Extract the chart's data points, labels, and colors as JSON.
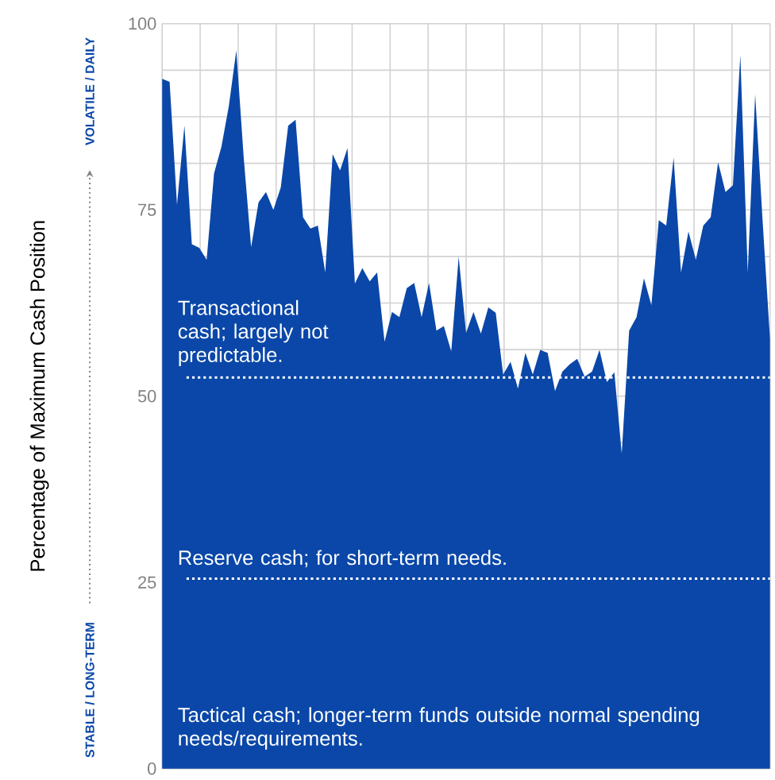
{
  "chart_data": {
    "type": "area",
    "ylabel": "Percentage of Maximum Cash Position",
    "categories": [
      null,
      null,
      null,
      null,
      null,
      null,
      null,
      null,
      null,
      null,
      null,
      null,
      null,
      null,
      null,
      null,
      null,
      null,
      null,
      null,
      null,
      null,
      null,
      null,
      null,
      null,
      null,
      null,
      null,
      null,
      null,
      null,
      null,
      null,
      null,
      null,
      null,
      null,
      null,
      null,
      null,
      null,
      null,
      null,
      null,
      null,
      null,
      null,
      null,
      null,
      null,
      null,
      null,
      null,
      null,
      null,
      null,
      null,
      null,
      null,
      null,
      null,
      null,
      null,
      null,
      null,
      null,
      null,
      null,
      null,
      null,
      null,
      null,
      null,
      null,
      null,
      null,
      null,
      null,
      null,
      null,
      null,
      null
    ],
    "values": [
      92.6,
      92.2,
      75.7,
      86.3,
      70.4,
      69.9,
      68.3,
      79.9,
      83.5,
      89,
      96.4,
      82,
      70,
      76,
      77.4,
      75,
      78,
      86.3,
      87.1,
      74,
      72.5,
      72.9,
      66.6,
      82.5,
      80.3,
      83.3,
      65.1,
      67.2,
      65.4,
      66.6,
      57.3,
      61.3,
      60.6,
      64.5,
      65.2,
      60.6,
      65.2,
      58.8,
      59.4,
      56,
      68.7,
      58.5,
      61.3,
      58.4,
      61.9,
      61.2,
      52.9,
      54.6,
      51,
      55.8,
      52.9,
      56.2,
      55.8,
      50.7,
      53.3,
      54.3,
      55,
      52.6,
      53.3,
      56.2,
      51.9,
      53.2,
      42.3,
      58.8,
      60.6,
      65.8,
      62.2,
      73.6,
      72.9,
      82,
      66.6,
      72.1,
      68.3,
      72.9,
      74,
      81.4,
      77.4,
      78.3,
      95.8,
      66.6,
      90.5,
      73.6,
      57.7
    ],
    "color": "#0a47a8",
    "ylim": [
      0,
      100
    ],
    "yticks": [
      0,
      25,
      50,
      75,
      100
    ],
    "grid": true,
    "ref_lines": [
      {
        "axis": "y",
        "value": 52.5,
        "label": "Transactional cash; largely not predictable.",
        "color": "#ffffff",
        "line_style": "dotted"
      },
      {
        "axis": "y",
        "value": 25.5,
        "label": "Reserve cash; for short-term needs.",
        "color": "#ffffff",
        "line_style": "dotted"
      }
    ],
    "annotations": [
      "Tactical cash; longer-term funds outside normal spending needs/requirements.",
      "VOLATILE / DAILY",
      "STABLE / LONG-TERM"
    ]
  }
}
